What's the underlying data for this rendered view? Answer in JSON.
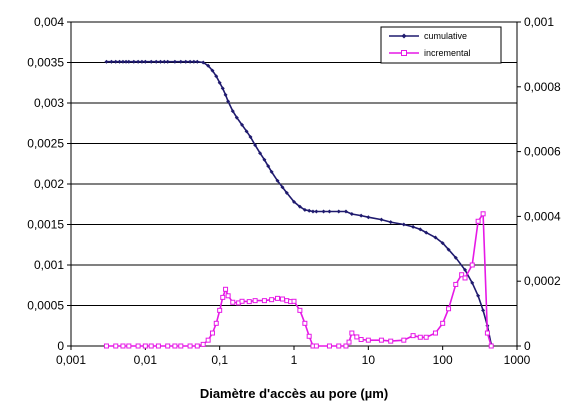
{
  "chart_data": {
    "type": "line",
    "title": "",
    "xlabel": "Diamètre d'accès au pore (µm)",
    "ylabel": "",
    "y2label": "",
    "xscale": "log",
    "xlim": [
      0.001,
      1000
    ],
    "ylim": [
      0,
      0.004
    ],
    "y2lim": [
      0,
      0.001
    ],
    "x_ticks": [
      "0,001",
      "0,01",
      "0,1",
      "1",
      "10",
      "100",
      "1000"
    ],
    "y_ticks": [
      "0",
      "0,0005",
      "0,001",
      "0,0015",
      "0,002",
      "0,0025",
      "0,003",
      "0,0035",
      "0,004"
    ],
    "y2_ticks": [
      "0",
      "0,0002",
      "0,0004",
      "0,0006",
      "0,0008",
      "0,001"
    ],
    "grid": "horizontal",
    "legend_position": "top-right",
    "series": [
      {
        "name": "cumulative",
        "axis": "left",
        "color": "#1f1a6e",
        "marker": "diamond",
        "x": [
          0.003,
          0.0035,
          0.004,
          0.0045,
          0.005,
          0.0055,
          0.006,
          0.007,
          0.008,
          0.009,
          0.01,
          0.012,
          0.014,
          0.016,
          0.018,
          0.02,
          0.025,
          0.03,
          0.035,
          0.04,
          0.045,
          0.05,
          0.06,
          0.07,
          0.08,
          0.09,
          0.1,
          0.11,
          0.12,
          0.13,
          0.15,
          0.17,
          0.2,
          0.23,
          0.26,
          0.3,
          0.35,
          0.4,
          0.45,
          0.5,
          0.6,
          0.7,
          0.8,
          1.0,
          1.2,
          1.4,
          1.6,
          1.8,
          2.0,
          2.5,
          3,
          4,
          5,
          6,
          8,
          10,
          15,
          20,
          30,
          40,
          50,
          60,
          80,
          100,
          120,
          150,
          200,
          250,
          300,
          350,
          400,
          450
        ],
        "values": [
          0.00351,
          0.00351,
          0.00351,
          0.00351,
          0.00351,
          0.00351,
          0.00351,
          0.00351,
          0.00351,
          0.00351,
          0.00351,
          0.00351,
          0.00351,
          0.00351,
          0.00351,
          0.00351,
          0.00351,
          0.00351,
          0.00351,
          0.00351,
          0.00351,
          0.00351,
          0.0035,
          0.00346,
          0.0034,
          0.00333,
          0.00325,
          0.00318,
          0.0031,
          0.00302,
          0.0029,
          0.00282,
          0.00273,
          0.00265,
          0.00258,
          0.00248,
          0.00238,
          0.0023,
          0.00222,
          0.00215,
          0.00204,
          0.00196,
          0.00189,
          0.00178,
          0.00172,
          0.00168,
          0.00167,
          0.00166,
          0.00166,
          0.00166,
          0.00166,
          0.00166,
          0.00166,
          0.00163,
          0.00161,
          0.00159,
          0.00156,
          0.00153,
          0.0015,
          0.00147,
          0.00144,
          0.0014,
          0.00134,
          0.00127,
          0.00119,
          0.00109,
          0.00094,
          0.00078,
          0.00062,
          0.00044,
          0.00025,
          2e-05
        ]
      },
      {
        "name": "incremental",
        "axis": "right",
        "color": "#e619e6",
        "marker": "square",
        "x": [
          0.003,
          0.004,
          0.005,
          0.006,
          0.008,
          0.01,
          0.012,
          0.015,
          0.02,
          0.025,
          0.03,
          0.04,
          0.05,
          0.06,
          0.07,
          0.08,
          0.09,
          0.1,
          0.11,
          0.12,
          0.13,
          0.15,
          0.18,
          0.2,
          0.25,
          0.3,
          0.4,
          0.5,
          0.6,
          0.7,
          0.8,
          0.9,
          1.0,
          1.2,
          1.4,
          1.6,
          1.8,
          2,
          3,
          4,
          5,
          5.5,
          6,
          7,
          8,
          10,
          15,
          20,
          30,
          40,
          50,
          60,
          80,
          100,
          120,
          150,
          180,
          200,
          250,
          300,
          350,
          400,
          450
        ],
        "values": [
          0,
          0,
          0,
          0,
          0,
          0,
          0,
          0,
          0,
          0,
          0,
          0,
          0,
          5e-06,
          1.8e-05,
          4e-05,
          7e-05,
          0.00011,
          0.00015,
          0.000175,
          0.000155,
          0.000135,
          0.000133,
          0.000138,
          0.000137,
          0.00014,
          0.00014,
          0.000143,
          0.000147,
          0.000145,
          0.00014,
          0.000137,
          0.000138,
          0.00011,
          7e-05,
          3e-05,
          0,
          0,
          0,
          0,
          0,
          1.2e-05,
          4e-05,
          2.8e-05,
          2e-05,
          1.8e-05,
          1.8e-05,
          1.5e-05,
          1.8e-05,
          3.2e-05,
          2.7e-05,
          2.7e-05,
          4e-05,
          7e-05,
          0.000115,
          0.00019,
          0.00022,
          0.00021,
          0.00025,
          0.000385,
          0.000408,
          4e-05,
          0
        ]
      }
    ]
  }
}
